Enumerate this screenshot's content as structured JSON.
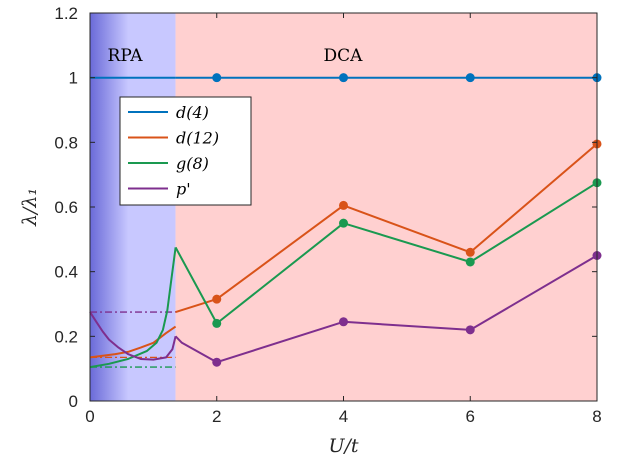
{
  "chart_data": {
    "type": "line",
    "xlabel": "U/t",
    "ylabel": "λ/λ₁",
    "xlim": [
      0,
      8
    ],
    "ylim": [
      0,
      1.2
    ],
    "xticks": [
      "0",
      "2",
      "4",
      "6",
      "8"
    ],
    "yticks": [
      "0",
      "0.2",
      "0.4",
      "0.6",
      "0.8",
      "1",
      "1.2"
    ],
    "grid": false,
    "legend_position": "upper-left",
    "regions": [
      {
        "label": "RPA",
        "x_range": [
          0,
          1.35
        ],
        "color": "#c8c8ff"
      },
      {
        "label": "DCA",
        "x_range": [
          1.35,
          8
        ],
        "color": "#ffd0d0"
      }
    ],
    "series": [
      {
        "name": "d(4)",
        "color": "#0072bd",
        "rpa_curve": [
          [
            0,
            1
          ],
          [
            1.35,
            1
          ]
        ],
        "dca_points": [
          [
            1.35,
            1
          ],
          [
            2,
            1
          ],
          [
            4,
            1
          ],
          [
            6,
            1
          ],
          [
            8,
            1
          ]
        ],
        "markers": [
          [
            2,
            1
          ],
          [
            4,
            1
          ],
          [
            6,
            1
          ],
          [
            8,
            1
          ]
        ],
        "dashdot_level": null
      },
      {
        "name": "d(12)",
        "color": "#d95319",
        "rpa_curve": [
          [
            0,
            0.135
          ],
          [
            0.2,
            0.14
          ],
          [
            0.4,
            0.145
          ],
          [
            0.6,
            0.152
          ],
          [
            0.8,
            0.165
          ],
          [
            1.0,
            0.18
          ],
          [
            1.2,
            0.21
          ],
          [
            1.35,
            0.23
          ]
        ],
        "dca_points": [
          [
            1.35,
            0.275
          ],
          [
            2,
            0.315
          ],
          [
            4,
            0.605
          ],
          [
            6,
            0.46
          ],
          [
            8,
            0.795
          ]
        ],
        "markers": [
          [
            2,
            0.315
          ],
          [
            4,
            0.605
          ],
          [
            6,
            0.46
          ],
          [
            8,
            0.795
          ]
        ],
        "dashdot_level": 0.135
      },
      {
        "name": "g(8)",
        "color": "#1a9950",
        "rpa_curve": [
          [
            0,
            0.105
          ],
          [
            0.3,
            0.115
          ],
          [
            0.6,
            0.13
          ],
          [
            0.9,
            0.155
          ],
          [
            1.05,
            0.18
          ],
          [
            1.15,
            0.22
          ],
          [
            1.22,
            0.28
          ],
          [
            1.28,
            0.37
          ],
          [
            1.35,
            0.475
          ]
        ],
        "dca_points": [
          [
            1.35,
            0.475
          ],
          [
            2,
            0.24
          ],
          [
            4,
            0.55
          ],
          [
            6,
            0.43
          ],
          [
            8,
            0.675
          ]
        ],
        "markers": [
          [
            2,
            0.24
          ],
          [
            4,
            0.55
          ],
          [
            6,
            0.43
          ],
          [
            8,
            0.675
          ]
        ],
        "dashdot_level": 0.105
      },
      {
        "name": "p'",
        "color": "#7e2f8e",
        "rpa_curve": [
          [
            0,
            0.275
          ],
          [
            0.1,
            0.245
          ],
          [
            0.2,
            0.215
          ],
          [
            0.3,
            0.19
          ],
          [
            0.45,
            0.165
          ],
          [
            0.6,
            0.145
          ],
          [
            0.8,
            0.13
          ],
          [
            1.0,
            0.128
          ],
          [
            1.2,
            0.135
          ],
          [
            1.3,
            0.16
          ],
          [
            1.35,
            0.2
          ]
        ],
        "dca_points": [
          [
            1.35,
            0.2
          ],
          [
            1.45,
            0.18
          ],
          [
            2,
            0.12
          ],
          [
            4,
            0.245
          ],
          [
            6,
            0.22
          ],
          [
            8,
            0.45
          ]
        ],
        "markers": [
          [
            2,
            0.12
          ],
          [
            4,
            0.245
          ],
          [
            6,
            0.22
          ],
          [
            8,
            0.45
          ]
        ],
        "dashdot_level": 0.275
      }
    ]
  }
}
